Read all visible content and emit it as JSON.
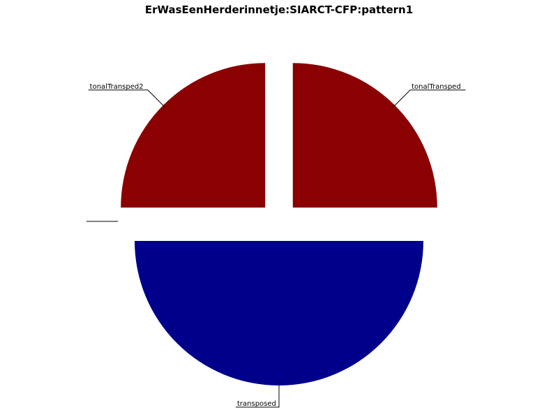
{
  "chart_data": {
    "type": "pie",
    "title": "ErWasEenHerderinnetje:SIARCT-CFP:pattern1",
    "slices": [
      {
        "label": "transposed",
        "value": 50,
        "color": "#00008b"
      },
      {
        "label": "tonalTransped",
        "value": 25,
        "color": "#8b0000"
      },
      {
        "label": "tonalTransped2",
        "value": 25,
        "color": "#8b0000"
      },
      {
        "label": "",
        "value": 0,
        "color": "#00008b"
      },
      {
        "label": "",
        "value": 0,
        "color": "#00008b"
      }
    ],
    "start_angle_deg": 180,
    "direction": "counterclockwise",
    "exploded": true,
    "legend": "none"
  }
}
